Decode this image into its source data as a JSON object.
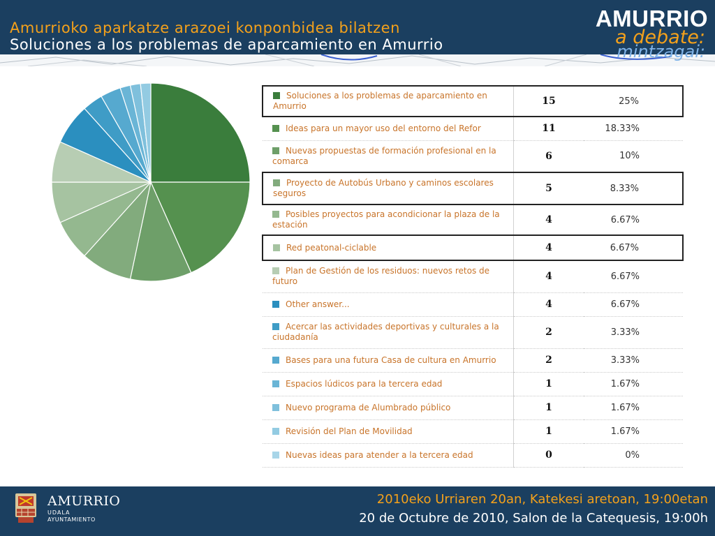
{
  "header": {
    "title_eu": "Amurrioko aparkatze arazoei konponbidea bilatzen",
    "title_es": "Soluciones a los problemas de aparcamiento en Amurrio",
    "brand_name": "AMURRIO",
    "brand_es": "a debate:",
    "brand_eu": "mintzagai:"
  },
  "chart_data": {
    "type": "pie",
    "categories": [
      "Soluciones a los problemas de aparcamiento en Amurrio",
      "Ideas para un mayor uso del entorno del Refor",
      "Nuevas propuestas de formación profesional en la comarca",
      "Proyecto de Autobús Urbano y caminos escolares seguros",
      "Posibles proyectos para acondicionar la plaza de la estación",
      "Red peatonal-ciclable",
      "Plan de Gestión de los residuos: nuevos retos de futuro",
      "Other answer...",
      "Acercar las actividades deportivas y culturales a la ciudadanía",
      "Bases para una futura Casa de cultura en Amurrio",
      "Espacios lúdicos para la tercera edad",
      "Nuevo programa de Alumbrado público",
      "Revisión del Plan de Movilidad",
      "Nuevas ideas para atender a la tercera edad"
    ],
    "values": [
      15,
      11,
      6,
      5,
      4,
      4,
      4,
      4,
      2,
      2,
      1,
      1,
      1,
      0
    ],
    "percentages": [
      "25%",
      "18.33%",
      "10%",
      "8.33%",
      "6.67%",
      "6.67%",
      "6.67%",
      "6.67%",
      "3.33%",
      "3.33%",
      "1.67%",
      "1.67%",
      "1.67%",
      "0%"
    ],
    "colors": [
      "#3a7d3c",
      "#55914f",
      "#6e9f69",
      "#82ab7d",
      "#94b88f",
      "#a6c3a1",
      "#b7cdb3",
      "#2b8fbf",
      "#3f9cc6",
      "#56a9cf",
      "#6ab5d6",
      "#7fc0dc",
      "#93cbe2",
      "#a8d5e8"
    ],
    "highlighted": [
      0,
      3,
      5
    ]
  },
  "footer": {
    "name": "AMURRIO",
    "sub1": "UDALA",
    "sub2": "AYUNTAMIENTO",
    "date_eu": "2010eko Urriaren 20an, Katekesi aretoan, 19:00etan",
    "date_es": "20 de Octubre de 2010, Salon de la Catequesis, 19:00h"
  }
}
